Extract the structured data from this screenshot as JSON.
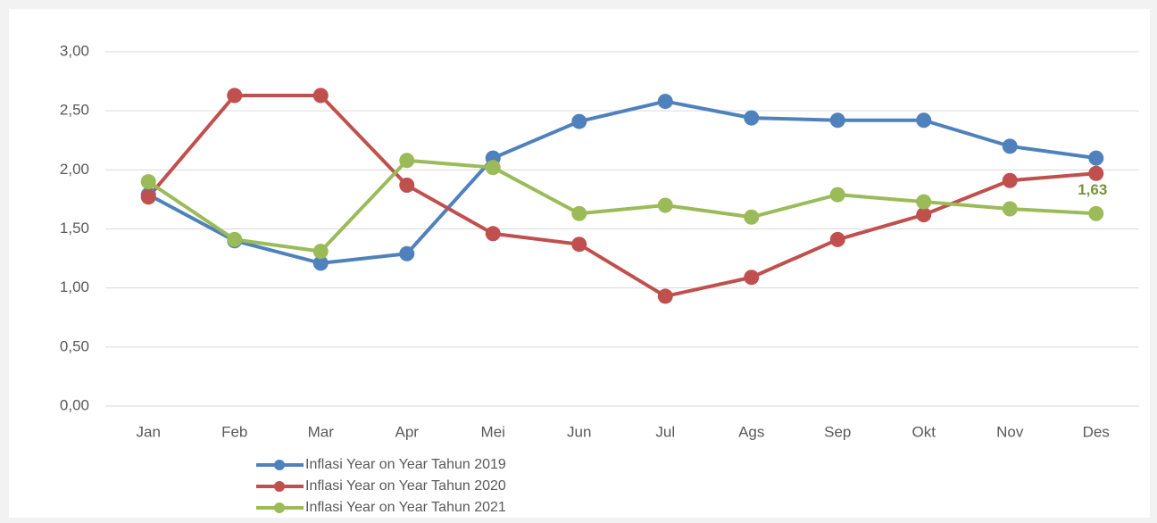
{
  "chart_data": {
    "type": "line",
    "categories": [
      "Jan",
      "Feb",
      "Mar",
      "Apr",
      "Mei",
      "Jun",
      "Jul",
      "Ags",
      "Sep",
      "Okt",
      "Nov",
      "Des"
    ],
    "series": [
      {
        "name": "Inflasi Year on Year Tahun 2019",
        "color": "#4f81bd",
        "values": [
          1.79,
          1.4,
          1.21,
          1.29,
          2.1,
          2.41,
          2.58,
          2.44,
          2.42,
          2.42,
          2.2,
          2.1
        ]
      },
      {
        "name": "Inflasi Year on Year Tahun 2020",
        "color": "#c0504d",
        "values": [
          1.77,
          2.63,
          2.63,
          1.87,
          1.46,
          1.37,
          0.93,
          1.09,
          1.41,
          1.62,
          1.91,
          1.97
        ]
      },
      {
        "name": "Inflasi Year on Year Tahun 2021",
        "color": "#9bbb59",
        "values": [
          1.9,
          1.41,
          1.31,
          2.08,
          2.02,
          1.63,
          1.7,
          1.6,
          1.79,
          1.73,
          1.67,
          1.63
        ],
        "value_labels": [
          null,
          null,
          null,
          null,
          null,
          null,
          null,
          null,
          null,
          null,
          null,
          "1,63"
        ],
        "label_color": "#77933c"
      }
    ],
    "ylim": [
      0,
      3
    ],
    "yticks": [
      {
        "value": 0,
        "label": "0,00"
      },
      {
        "value": 0.5,
        "label": "0,50"
      },
      {
        "value": 1,
        "label": "1,00"
      },
      {
        "value": 1.5,
        "label": "1,50"
      },
      {
        "value": 2,
        "label": "2,00"
      },
      {
        "value": 2.5,
        "label": "2,50"
      },
      {
        "value": 3,
        "label": "3,00"
      }
    ],
    "grid": true,
    "legend": "bottom"
  }
}
